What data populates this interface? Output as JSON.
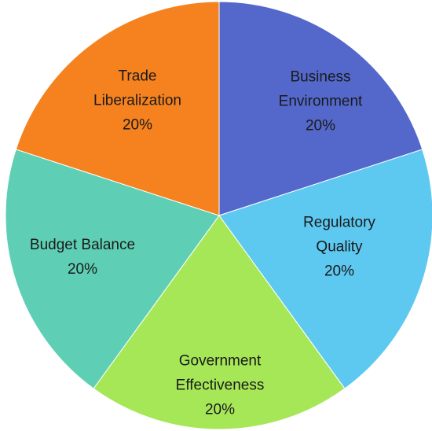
{
  "chart_data": {
    "type": "pie",
    "categories": [
      "Business Environment",
      "Regulatory Quality",
      "Government Effectiveness",
      "Budget Balance",
      "Trade Liberalization"
    ],
    "values": [
      20,
      20,
      20,
      20,
      20
    ],
    "value_labels": [
      "20%",
      "20%",
      "20%",
      "20%",
      "20%"
    ],
    "colors": [
      "#5468cb",
      "#5dc9f1",
      "#a6e758",
      "#5ecfb4",
      "#f5821f"
    ]
  }
}
